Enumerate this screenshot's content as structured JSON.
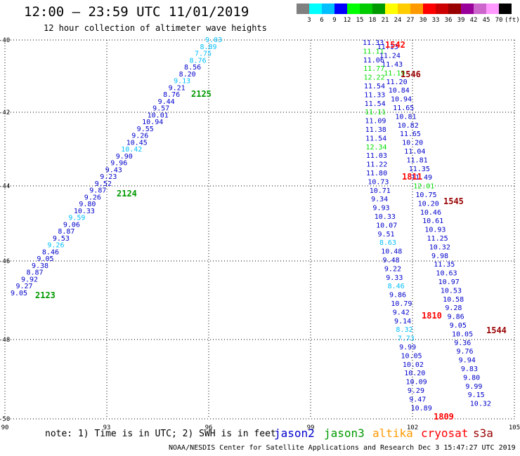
{
  "title": "12:00 – 23:59 UTC 11/01/2019",
  "subtitle": "12 hour collection of altimeter wave heights",
  "scale": {
    "colors": [
      "#808080",
      "#00ffff",
      "#00bfff",
      "#0000ff",
      "#00ff00",
      "#00cc00",
      "#009900",
      "#ffff00",
      "#ffcc00",
      "#ff9900",
      "#ff0000",
      "#cc0000",
      "#990000",
      "#990099",
      "#cc66cc",
      "#ff99ff",
      "#000000"
    ],
    "labels": [
      "3",
      "6",
      "9",
      "12",
      "15",
      "18",
      "21",
      "24",
      "27",
      "30",
      "33",
      "36",
      "39",
      "42",
      "45",
      "70"
    ],
    "unit": "(ft)"
  },
  "axes": {
    "lat_labels": [
      "-40",
      "-42",
      "-44",
      "-46",
      "-48",
      "-50"
    ],
    "lon_labels": [
      "90",
      "93",
      "96",
      "99",
      "102",
      "105"
    ]
  },
  "satellite_colors": {
    "jason2": "#0000cc",
    "jason3": "#009900",
    "altika": "#ff9900",
    "cryosat": "#ff0000",
    "s3a": "#990000"
  },
  "colors": {
    "dark_blue": "#0000cc",
    "light_blue": "#00bfff",
    "green": "#00dd00",
    "time_green": "#009900",
    "red": "#ff0000",
    "maroon": "#990000"
  },
  "tracks": [
    {
      "name": "track-a",
      "color": "#0000cc",
      "values": [
        "9.05",
        "9.27",
        "9.92",
        "8.87",
        "9.38",
        "9.05",
        "8.46",
        "9.26",
        "9.53",
        "8.87",
        "9.06",
        "9.59",
        "10.33",
        "9.80",
        "9.26",
        "9.87",
        "9.52",
        "9.23",
        "9.43",
        "9.96",
        "9.90",
        "10.42",
        "10.45",
        "9.26",
        "9.55",
        "10.94",
        "10.01",
        "9.57",
        "9.44",
        "8.76",
        "9.21",
        "9.13",
        "8.20",
        "8.56",
        "8.76",
        "7.75",
        "8.89",
        "9.03"
      ]
    },
    {
      "name": "track-b",
      "color": "#0000cc",
      "values": [
        "11.33",
        "11.13",
        "11.11",
        "11.24",
        "11.06",
        "11.43",
        "11.77",
        "11.19",
        "12.22",
        "11.20",
        "11.54",
        "10.84",
        "11.33",
        "10.94",
        "11.54",
        "11.65",
        "11.11",
        "10.81",
        "11.09",
        "10.82",
        "11.38",
        "11.65",
        "11.54",
        "10.20",
        "12.34",
        "11.04",
        "11.03",
        "11.81",
        "11.22",
        "11.35",
        "11.80",
        "11.49",
        "10.73",
        "12.01",
        "10.71",
        "10.75",
        "9.34",
        "10.20",
        "9.93",
        "10.46",
        "10.33",
        "10.61",
        "10.07",
        "10.93",
        "9.51",
        "11.25",
        "8.63",
        "10.32",
        "10.48",
        "9.98",
        "9.48",
        "11.35",
        "9.22",
        "10.63",
        "9.33",
        "10.97",
        "8.46",
        "10.53",
        "9.86",
        "10.58",
        "10.79",
        "9.28",
        "9.42",
        "9.86",
        "9.14",
        "9.05",
        "8.32",
        "10.05",
        "7.73",
        "9.36",
        "9.99",
        "9.76",
        "10.05",
        "9.94",
        "10.02",
        "9.83",
        "10.20",
        "9.80",
        "10.09",
        "9.99",
        "9.29",
        "9.15",
        "9.47",
        "10.32",
        "10.89"
      ]
    }
  ],
  "times": [
    {
      "label": "2123",
      "color": "#009900"
    },
    {
      "label": "2124",
      "color": "#009900"
    },
    {
      "label": "2125",
      "color": "#009900"
    },
    {
      "label": "1542",
      "color": "#ff0000"
    },
    {
      "label": "1546",
      "color": "#990000"
    },
    {
      "label": "1811",
      "color": "#ff0000"
    },
    {
      "label": "1545",
      "color": "#990000"
    },
    {
      "label": "1810",
      "color": "#ff0000"
    },
    {
      "label": "1544",
      "color": "#990000"
    },
    {
      "label": "1809",
      "color": "#ff0000"
    }
  ],
  "note": "note: 1) Time is in UTC; 2) SWH is in feet",
  "legend": [
    {
      "name": "jason2",
      "color": "#0000cc"
    },
    {
      "name": "jason3",
      "color": "#009900"
    },
    {
      "name": "altika",
      "color": "#ff9900"
    },
    {
      "name": "cryosat",
      "color": "#ff0000"
    },
    {
      "name": "s3a",
      "color": "#990000"
    }
  ],
  "credit": "NOAA/NESDIS Center for Satellite Applications and Research    Dec  3 15:47:27 UTC 2019"
}
